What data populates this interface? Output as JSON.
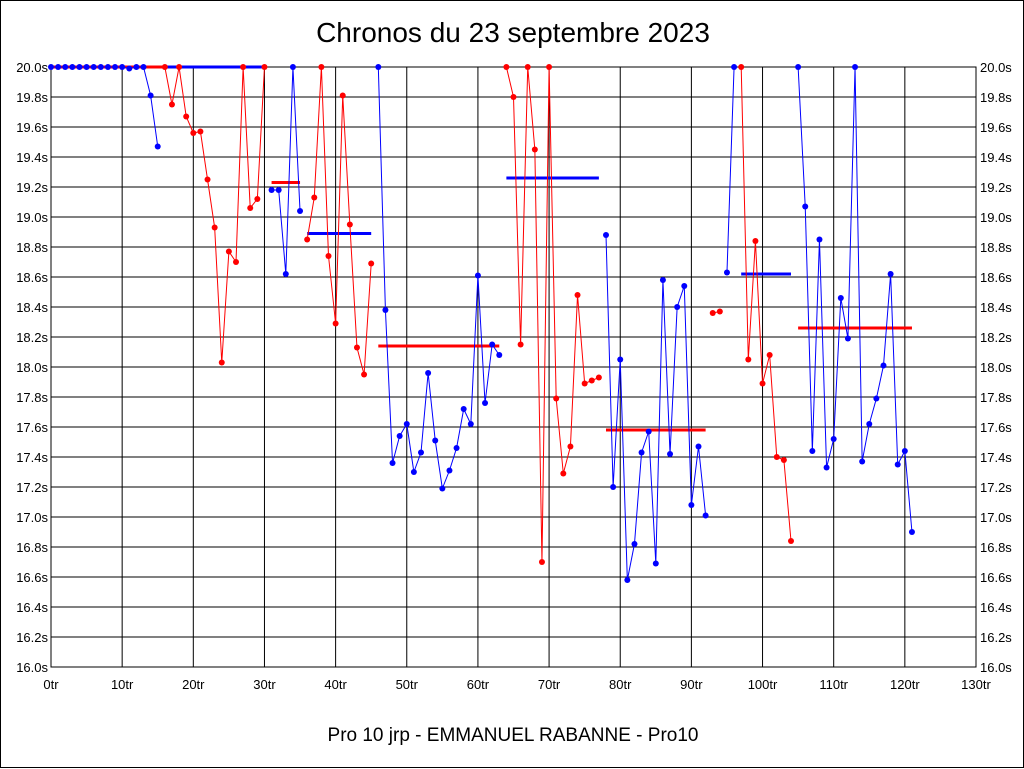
{
  "chart_data": {
    "type": "line",
    "title": "Chronos du 23 septembre 2023",
    "xlabel": "Pro 10 jrp - EMMANUEL RABANNE - Pro10",
    "ylabel": "",
    "xlim": [
      0,
      130
    ],
    "ylim": [
      16.0,
      20.0
    ],
    "xticks": [
      0,
      10,
      20,
      30,
      40,
      50,
      60,
      70,
      80,
      90,
      100,
      110,
      120,
      130
    ],
    "xtick_labels": [
      "0tr",
      "10tr",
      "20tr",
      "30tr",
      "40tr",
      "50tr",
      "60tr",
      "70tr",
      "80tr",
      "90tr",
      "100tr",
      "110tr",
      "120tr",
      "130tr"
    ],
    "yticks": [
      16.0,
      16.2,
      16.4,
      16.6,
      16.8,
      17.0,
      17.2,
      17.4,
      17.6,
      17.8,
      18.0,
      18.2,
      18.4,
      18.6,
      18.8,
      19.0,
      19.2,
      19.4,
      19.6,
      19.8,
      20.0
    ],
    "ytick_labels": [
      "16.0s",
      "16.2s",
      "16.4s",
      "16.6s",
      "16.8s",
      "17.0s",
      "17.2s",
      "17.4s",
      "17.6s",
      "17.8s",
      "18.0s",
      "18.2s",
      "18.4s",
      "18.6s",
      "18.8s",
      "19.0s",
      "19.2s",
      "19.4s",
      "19.6s",
      "19.8s",
      "20.0s"
    ],
    "grid": true,
    "legend": "none",
    "colors": {
      "red": "#ff0000",
      "blue": "#0000ff"
    },
    "series": [
      {
        "color": "blue",
        "points": [
          [
            0,
            20.0
          ],
          [
            1,
            20.0
          ],
          [
            2,
            20.0
          ],
          [
            3,
            20.0
          ],
          [
            4,
            20.0
          ],
          [
            5,
            20.0
          ],
          [
            6,
            20.0
          ],
          [
            7,
            20.0
          ],
          [
            8,
            20.0
          ],
          [
            9,
            20.0
          ],
          [
            10,
            20.0
          ],
          [
            11,
            19.99
          ],
          [
            12,
            20.0
          ],
          [
            13,
            20.0
          ],
          [
            14,
            19.81
          ],
          [
            15,
            19.47
          ]
        ]
      },
      {
        "color": "red",
        "points": [
          [
            16,
            20.0
          ],
          [
            17,
            19.75
          ],
          [
            18,
            20.0
          ],
          [
            19,
            19.67
          ],
          [
            20,
            19.56
          ],
          [
            21,
            19.57
          ],
          [
            22,
            19.25
          ],
          [
            23,
            18.93
          ],
          [
            24,
            18.03
          ],
          [
            25,
            18.77
          ],
          [
            26,
            18.7
          ],
          [
            27,
            20.0
          ],
          [
            28,
            19.06
          ],
          [
            29,
            19.12
          ],
          [
            30,
            20.0
          ]
        ]
      },
      {
        "color": "blue",
        "points": [
          [
            31,
            19.18
          ],
          [
            32,
            19.18
          ],
          [
            33,
            18.62
          ],
          [
            34,
            20.0
          ],
          [
            35,
            19.04
          ]
        ]
      },
      {
        "color": "red",
        "points": [
          [
            36,
            18.85
          ],
          [
            37,
            19.13
          ],
          [
            38,
            20.0
          ],
          [
            39,
            18.74
          ],
          [
            40,
            18.29
          ],
          [
            41,
            19.81
          ],
          [
            42,
            18.95
          ],
          [
            43,
            18.13
          ],
          [
            44,
            17.95
          ],
          [
            45,
            18.69
          ]
        ]
      },
      {
        "color": "blue",
        "points": [
          [
            46,
            20.0
          ],
          [
            47,
            18.38
          ],
          [
            48,
            17.36
          ],
          [
            49,
            17.54
          ],
          [
            50,
            17.62
          ],
          [
            51,
            17.3
          ],
          [
            52,
            17.43
          ],
          [
            53,
            17.96
          ],
          [
            54,
            17.51
          ],
          [
            55,
            17.19
          ],
          [
            56,
            17.31
          ],
          [
            57,
            17.46
          ],
          [
            58,
            17.72
          ],
          [
            59,
            17.62
          ],
          [
            60,
            18.61
          ],
          [
            61,
            17.76
          ],
          [
            62,
            18.15
          ],
          [
            63,
            18.08
          ]
        ]
      },
      {
        "color": "red",
        "points": [
          [
            64,
            20.0
          ],
          [
            65,
            19.8
          ],
          [
            66,
            18.15
          ],
          [
            67,
            20.0
          ],
          [
            68,
            19.45
          ],
          [
            69,
            16.7
          ],
          [
            70,
            20.0
          ],
          [
            71,
            17.79
          ],
          [
            72,
            17.29
          ],
          [
            73,
            17.47
          ],
          [
            74,
            18.48
          ],
          [
            75,
            17.89
          ],
          [
            76,
            17.91
          ],
          [
            77,
            17.93
          ]
        ]
      },
      {
        "color": "blue",
        "points": [
          [
            78,
            18.88
          ],
          [
            79,
            17.2
          ],
          [
            80,
            18.05
          ],
          [
            81,
            16.58
          ],
          [
            82,
            16.82
          ],
          [
            83,
            17.43
          ],
          [
            84,
            17.57
          ],
          [
            85,
            16.69
          ],
          [
            86,
            18.58
          ],
          [
            87,
            17.42
          ],
          [
            88,
            18.4
          ],
          [
            89,
            18.54
          ],
          [
            90,
            17.08
          ],
          [
            91,
            17.47
          ],
          [
            92,
            17.01
          ]
        ]
      },
      {
        "color": "red",
        "points": [
          [
            93,
            18.36
          ],
          [
            94,
            18.37
          ]
        ]
      },
      {
        "color": "blue",
        "points": [
          [
            95,
            18.63
          ],
          [
            96,
            20.0
          ]
        ]
      },
      {
        "color": "red",
        "points": [
          [
            97,
            20.0
          ],
          [
            98,
            18.05
          ],
          [
            99,
            18.84
          ],
          [
            100,
            17.89
          ],
          [
            101,
            18.08
          ],
          [
            102,
            17.4
          ],
          [
            103,
            17.38
          ],
          [
            104,
            16.84
          ]
        ]
      },
      {
        "color": "blue",
        "points": [
          [
            105,
            20.0
          ],
          [
            106,
            19.07
          ],
          [
            107,
            17.44
          ],
          [
            108,
            18.85
          ],
          [
            109,
            17.33
          ],
          [
            110,
            17.52
          ],
          [
            111,
            18.46
          ],
          [
            112,
            18.19
          ],
          [
            113,
            20.0
          ],
          [
            114,
            17.37
          ],
          [
            115,
            17.62
          ],
          [
            116,
            17.79
          ],
          [
            117,
            18.01
          ],
          [
            118,
            18.62
          ],
          [
            119,
            17.35
          ],
          [
            120,
            17.44
          ],
          [
            121,
            16.9
          ]
        ]
      }
    ],
    "averages": [
      {
        "color": "red",
        "x": [
          0,
          16
        ],
        "y": 20.0
      },
      {
        "color": "blue",
        "x": [
          16,
          30
        ],
        "y": 20.0
      },
      {
        "color": "red",
        "x": [
          31,
          35
        ],
        "y": 19.23
      },
      {
        "color": "blue",
        "x": [
          36,
          45
        ],
        "y": 18.89
      },
      {
        "color": "red",
        "x": [
          46,
          63
        ],
        "y": 18.14
      },
      {
        "color": "blue",
        "x": [
          64,
          77
        ],
        "y": 19.26
      },
      {
        "color": "red",
        "x": [
          78,
          92
        ],
        "y": 17.58
      },
      {
        "color": "blue",
        "x": [
          97,
          104
        ],
        "y": 18.62
      },
      {
        "color": "red",
        "x": [
          105,
          121
        ],
        "y": 18.26
      }
    ]
  }
}
